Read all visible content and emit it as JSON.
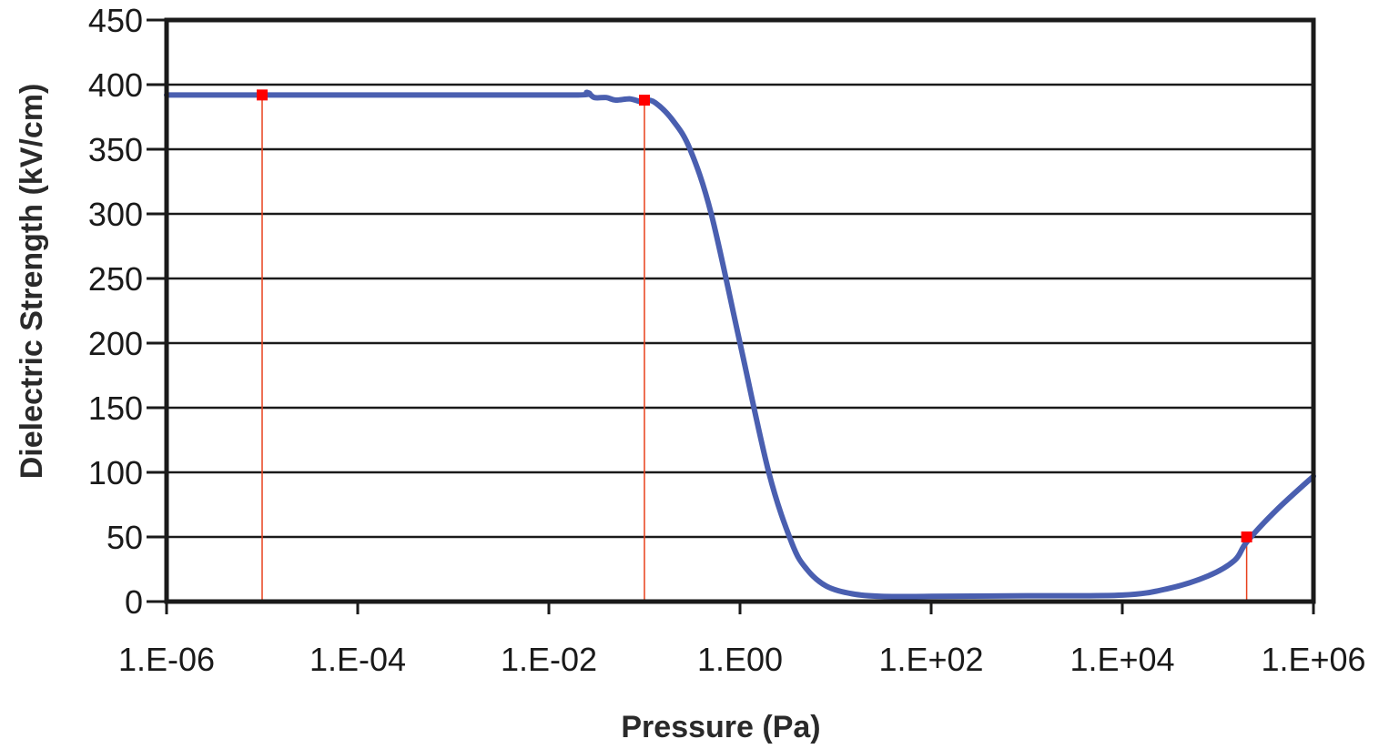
{
  "chart_data": {
    "type": "line",
    "title": "",
    "xlabel": "Pressure (Pa)",
    "ylabel": "Dielectric Strength (kV/cm)",
    "x_scale": "log",
    "xlim": [
      1e-06,
      1000000.0
    ],
    "ylim": [
      0,
      450
    ],
    "grid": "horizontal",
    "legend": "none",
    "x_ticks": [
      {
        "value": 1e-06,
        "label": "1.E-06"
      },
      {
        "value": 0.0001,
        "label": "1.E-04"
      },
      {
        "value": 0.01,
        "label": "1.E-02"
      },
      {
        "value": 1,
        "label": "1.E00"
      },
      {
        "value": 100.0,
        "label": "1.E+02"
      },
      {
        "value": 10000.0,
        "label": "1.E+04"
      },
      {
        "value": 1000000.0,
        "label": "1.E+06"
      }
    ],
    "y_ticks": [
      {
        "value": 0,
        "label": "0"
      },
      {
        "value": 50,
        "label": "50"
      },
      {
        "value": 100,
        "label": "100"
      },
      {
        "value": 150,
        "label": "150"
      },
      {
        "value": 200,
        "label": "200"
      },
      {
        "value": 250,
        "label": "250"
      },
      {
        "value": 300,
        "label": "300"
      },
      {
        "value": 350,
        "label": "350"
      },
      {
        "value": 400,
        "label": "400"
      },
      {
        "value": 450,
        "label": "450"
      }
    ],
    "series": [
      {
        "color": "#4a5fb0",
        "points": [
          {
            "x": 1e-06,
            "y": 392
          },
          {
            "x": 0.001,
            "y": 392
          },
          {
            "x": 0.02,
            "y": 392
          },
          {
            "x": 0.025,
            "y": 394
          },
          {
            "x": 0.03,
            "y": 390
          },
          {
            "x": 0.04,
            "y": 390
          },
          {
            "x": 0.05,
            "y": 388
          },
          {
            "x": 0.07,
            "y": 389
          },
          {
            "x": 0.09,
            "y": 387
          },
          {
            "x": 0.1,
            "y": 388
          },
          {
            "x": 0.13,
            "y": 386
          },
          {
            "x": 0.2,
            "y": 372
          },
          {
            "x": 0.3,
            "y": 350
          },
          {
            "x": 0.5,
            "y": 300
          },
          {
            "x": 1,
            "y": 200
          },
          {
            "x": 2,
            "y": 100
          },
          {
            "x": 3.5,
            "y": 45
          },
          {
            "x": 5,
            "y": 25
          },
          {
            "x": 8,
            "y": 12
          },
          {
            "x": 15,
            "y": 6
          },
          {
            "x": 30,
            "y": 4
          },
          {
            "x": 100,
            "y": 4
          },
          {
            "x": 1000,
            "y": 4.5
          },
          {
            "x": 10000,
            "y": 5
          },
          {
            "x": 30000,
            "y": 10
          },
          {
            "x": 80000,
            "y": 20
          },
          {
            "x": 150000,
            "y": 32
          },
          {
            "x": 200000,
            "y": 46
          },
          {
            "x": 400000,
            "y": 70
          },
          {
            "x": 1000000,
            "y": 97
          }
        ]
      }
    ],
    "markers": [
      {
        "x": 1e-05,
        "y": 392
      },
      {
        "x": 0.1,
        "y": 388
      },
      {
        "x": 200000,
        "y": 50
      }
    ],
    "marker_color": "#ff0000",
    "drop_line_color": "#e8401c",
    "frame_color": "#1a1a1a",
    "grid_color": "#1a1a1a"
  }
}
